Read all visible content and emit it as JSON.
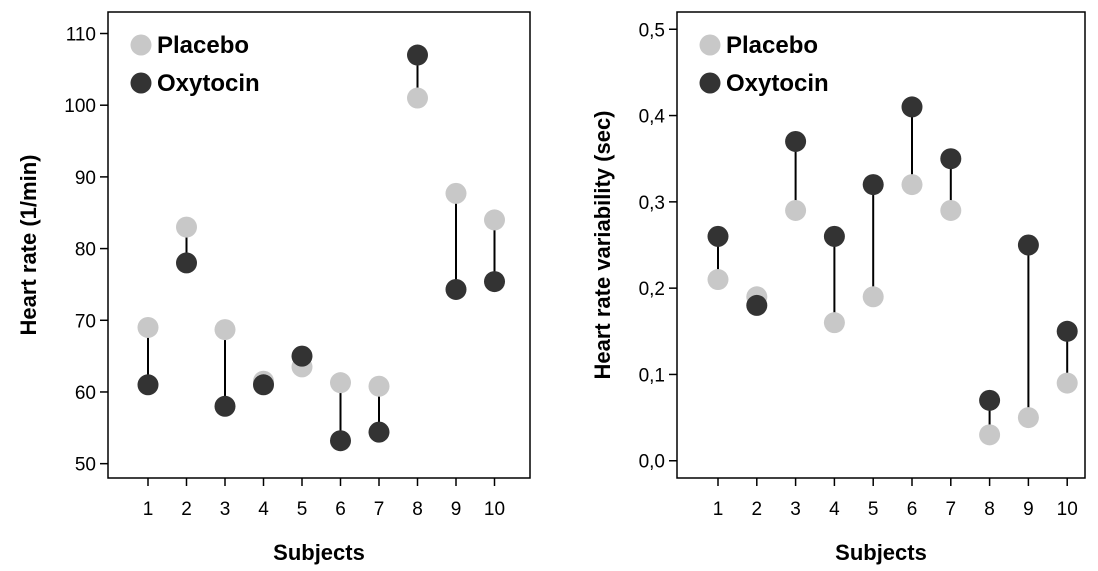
{
  "chart_data": [
    {
      "type": "scatter",
      "xlabel": "Subjects",
      "ylabel": "Heart rate (1/min)",
      "categories": [
        "1",
        "2",
        "3",
        "4",
        "5",
        "6",
        "7",
        "8",
        "9",
        "10"
      ],
      "yticks": [
        "50",
        "60",
        "70",
        "80",
        "90",
        "100",
        "110"
      ],
      "ylim": [
        48,
        113
      ],
      "legend_position": "top-left",
      "series": [
        {
          "name": "Placebo",
          "color": "#c8c8c8",
          "values": [
            69,
            83,
            68.7,
            61.5,
            63.5,
            61.3,
            60.8,
            101,
            87.7,
            84
          ]
        },
        {
          "name": "Oxytocin",
          "color": "#333333",
          "values": [
            61,
            78,
            58,
            61,
            65,
            53.2,
            54.4,
            107,
            74.3,
            75.4
          ]
        }
      ]
    },
    {
      "type": "scatter",
      "xlabel": "Subjects",
      "ylabel": "Heart rate variability (sec)",
      "categories": [
        "1",
        "2",
        "3",
        "4",
        "5",
        "6",
        "7",
        "8",
        "9",
        "10"
      ],
      "yticks": [
        "0,0",
        "0,1",
        "0,2",
        "0,3",
        "0,4",
        "0,5"
      ],
      "ylim": [
        -0.02,
        0.52
      ],
      "legend_position": "top-left",
      "series": [
        {
          "name": "Placebo",
          "color": "#c8c8c8",
          "values": [
            0.21,
            0.19,
            0.29,
            0.16,
            0.19,
            0.32,
            0.29,
            0.03,
            0.05,
            0.09
          ]
        },
        {
          "name": "Oxytocin",
          "color": "#333333",
          "values": [
            0.26,
            0.18,
            0.37,
            0.26,
            0.32,
            0.41,
            0.35,
            0.07,
            0.25,
            0.15
          ]
        }
      ]
    }
  ]
}
